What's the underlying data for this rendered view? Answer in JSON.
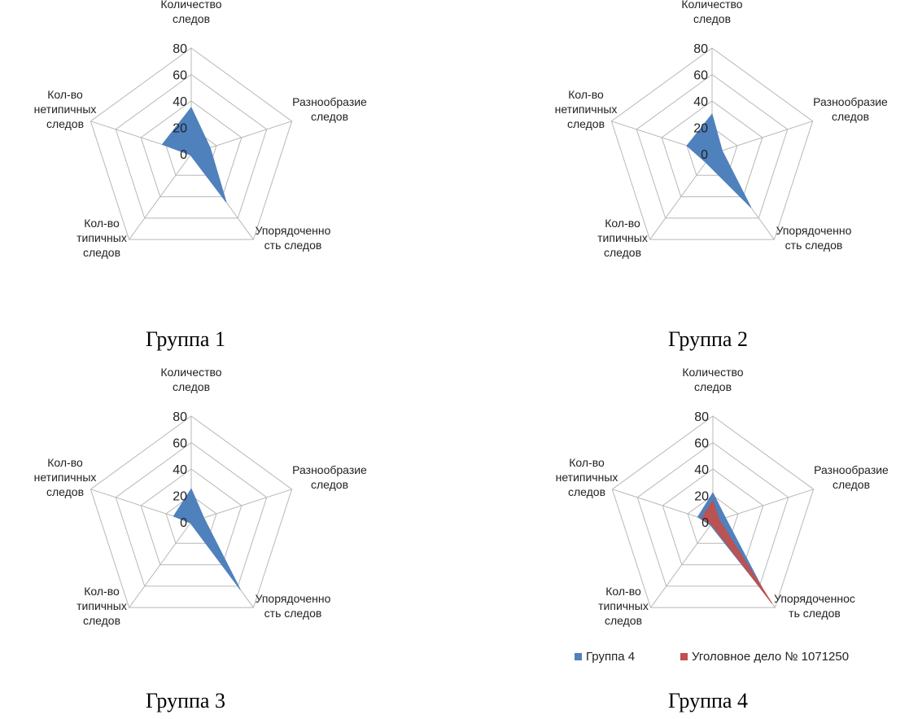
{
  "captions": [
    "Группа 1",
    "Группа 2",
    "Группа 3",
    "Группа 4"
  ],
  "colors": {
    "grid": "#b8b8b8",
    "blue": "#4f81bd",
    "red": "#c0504d"
  },
  "chart_data": [
    {
      "type": "radar",
      "axes": [
        [
          "Количество",
          "следов"
        ],
        [
          "Разнообразие",
          "следов"
        ],
        [
          "Упорядоченно",
          "сть следов"
        ],
        [
          "Кол-во",
          "типичных",
          "следов"
        ],
        [
          "Кол-во",
          "нетипичных",
          "следов"
        ]
      ],
      "ticks": [
        "0",
        "20",
        "40",
        "60",
        "80"
      ],
      "range": [
        0,
        80
      ],
      "series": [
        {
          "color_key": "blue",
          "values": [
            35,
            15,
            45,
            1,
            23
          ]
        }
      ]
    },
    {
      "type": "radar",
      "axes": [
        [
          "Количество",
          "следов"
        ],
        [
          "Разнообразие",
          "следов"
        ],
        [
          "Упорядоченно",
          "сть следов"
        ],
        [
          "Кол-во",
          "типичных",
          "следов"
        ],
        [
          "Кол-во",
          "нетипичных",
          "следов"
        ]
      ],
      "ticks": [
        "0",
        "20",
        "40",
        "60",
        "80"
      ],
      "range": [
        0,
        80
      ],
      "series": [
        {
          "color_key": "blue",
          "values": [
            30,
            8,
            50,
            8,
            20
          ]
        }
      ]
    },
    {
      "type": "radar",
      "axes": [
        [
          "Количество",
          "следов"
        ],
        [
          "Разнообразие",
          "следов"
        ],
        [
          "Упорядоченно",
          "сть следов"
        ],
        [
          "Кол-во",
          "типичных",
          "следов"
        ],
        [
          "Кол-во",
          "нетипичных",
          "следов"
        ]
      ],
      "ticks": [
        "0",
        "20",
        "40",
        "60",
        "80"
      ],
      "range": [
        0,
        80
      ],
      "series": [
        {
          "color_key": "blue",
          "values": [
            25,
            10,
            63,
            1,
            14
          ]
        }
      ]
    },
    {
      "type": "radar",
      "axes": [
        [
          "Количество",
          "следов"
        ],
        [
          "Разнообразие",
          "следов"
        ],
        [
          "Упорядоченнос",
          "ть следов"
        ],
        [
          "Кол-во",
          "типичных",
          "следов"
        ],
        [
          "Кол-во",
          "нетипичных",
          "следов"
        ]
      ],
      "ticks": [
        "0",
        "20",
        "40",
        "60",
        "80"
      ],
      "range": [
        0,
        80
      ],
      "legend": {
        "position": "bottom"
      },
      "series": [
        {
          "name": "Группа 4",
          "color_key": "blue",
          "values": [
            22,
            10,
            68,
            3,
            12
          ]
        },
        {
          "name": "Уголовное дело № 1071250",
          "color_key": "red",
          "values": [
            16,
            5,
            76,
            2,
            9
          ]
        }
      ]
    }
  ]
}
